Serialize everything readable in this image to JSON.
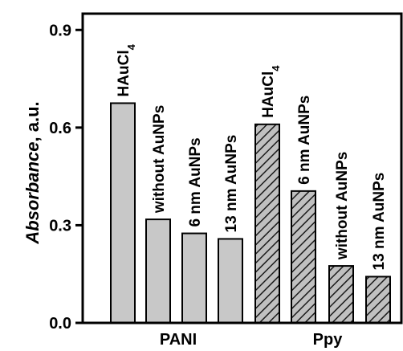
{
  "chart_data": {
    "type": "bar",
    "ylabel": {
      "italic": "Absorbance",
      "rest": ", a.u."
    },
    "ylim": [
      0,
      0.95
    ],
    "yticks": [
      "0.0",
      "0.3",
      "0.6",
      "0.9"
    ],
    "ytick_values": [
      0.0,
      0.3,
      0.6,
      0.9
    ],
    "groups": [
      {
        "name": "PANI",
        "pattern": "solid"
      },
      {
        "name": "Ppy",
        "pattern": "hatched"
      }
    ],
    "bars": [
      {
        "group": "PANI",
        "label": "HAuCl4",
        "label_main": "HAuCl",
        "label_sub": "4",
        "value": 0.675
      },
      {
        "group": "PANI",
        "label": "without AuNPs",
        "value": 0.318
      },
      {
        "group": "PANI",
        "label": "6 nm AuNPs",
        "value": 0.275
      },
      {
        "group": "PANI",
        "label": "13 nm AuNPs",
        "value": 0.258
      },
      {
        "group": "Ppy",
        "label": "HAuCl4",
        "label_main": "HAuCl",
        "label_sub": "4",
        "value": 0.61
      },
      {
        "group": "Ppy",
        "label": "6 nm AuNPs",
        "value": 0.405
      },
      {
        "group": "Ppy",
        "label": "without AuNPs",
        "value": 0.175
      },
      {
        "group": "Ppy",
        "label": "13 nm AuNPs",
        "value": 0.142
      }
    ],
    "colors": {
      "bar_fill": "#c8c8c8",
      "hatch_bg": "#c0c0c0",
      "hatch_line": "#1a1a1a",
      "axis": "#000000"
    },
    "grid": false
  }
}
